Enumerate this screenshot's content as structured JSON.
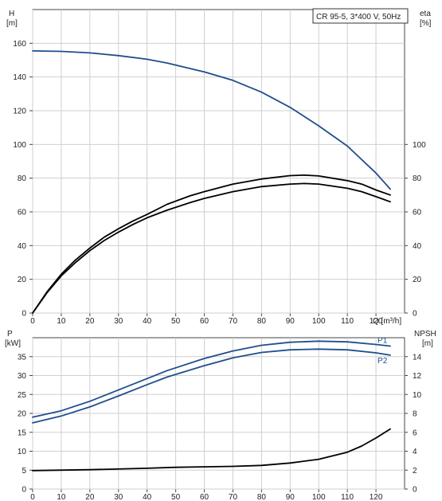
{
  "chart_data": [
    {
      "type": "line",
      "title": "CR 95-5, 3*400 V, 50Hz",
      "xlabel": "Q [m³/h]",
      "x_ticks": [
        0,
        10,
        20,
        30,
        40,
        50,
        60,
        70,
        80,
        90,
        100,
        110,
        120
      ],
      "xlim": [
        0,
        130
      ],
      "grid": true,
      "left_axis": {
        "label_line1": "H",
        "label_line2": "[m]",
        "ylim": [
          0,
          180
        ],
        "ticks": [
          0,
          20,
          40,
          60,
          80,
          100,
          120,
          140,
          160
        ]
      },
      "right_axis": {
        "label_line1": "eta",
        "label_line2": "[%]",
        "ylim": [
          0,
          180
        ],
        "ticks": [
          0,
          20,
          40,
          60,
          80,
          100
        ]
      },
      "series": [
        {
          "axis": "H",
          "color": "#1f4e8c",
          "values": [
            [
              0,
              155.5
            ],
            [
              10,
              155.2
            ],
            [
              20,
              154.3
            ],
            [
              30,
              152.7
            ],
            [
              40,
              150.5
            ],
            [
              47,
              148.3
            ],
            [
              60,
              143
            ],
            [
              70,
              138
            ],
            [
              80,
              131
            ],
            [
              90,
              122
            ],
            [
              100,
              111
            ],
            [
              110,
              99
            ],
            [
              120,
              83
            ],
            [
              125,
              73.5
            ]
          ]
        },
        {
          "axis": "eta",
          "color": "#000000",
          "values": [
            [
              0,
              0
            ],
            [
              5,
              12
            ],
            [
              10,
              22
            ],
            [
              15,
              30
            ],
            [
              20,
              37
            ],
            [
              25,
              43
            ],
            [
              30,
              48
            ],
            [
              35,
              52.5
            ],
            [
              40,
              56.5
            ],
            [
              47,
              61
            ],
            [
              55,
              65.5
            ],
            [
              60,
              68
            ],
            [
              70,
              72
            ],
            [
              80,
              75
            ],
            [
              90,
              76.5
            ],
            [
              95,
              76.8
            ],
            [
              100,
              76.5
            ],
            [
              110,
              74
            ],
            [
              115,
              72
            ],
            [
              120,
              69
            ],
            [
              125,
              66
            ]
          ]
        },
        {
          "axis": "eta",
          "color": "#000000",
          "values": [
            [
              0,
              0
            ],
            [
              5,
              12.5
            ],
            [
              10,
              23
            ],
            [
              15,
              31.5
            ],
            [
              20,
              38.5
            ],
            [
              25,
              45
            ],
            [
              30,
              50
            ],
            [
              35,
              54.5
            ],
            [
              40,
              58.5
            ],
            [
              47,
              64.5
            ],
            [
              55,
              69.5
            ],
            [
              60,
              72
            ],
            [
              70,
              76.5
            ],
            [
              80,
              79.5
            ],
            [
              90,
              81.5
            ],
            [
              95,
              81.8
            ],
            [
              100,
              81.3
            ],
            [
              110,
              78.5
            ],
            [
              115,
              76.5
            ],
            [
              120,
              73
            ],
            [
              125,
              70
            ]
          ]
        }
      ]
    },
    {
      "type": "line",
      "x_ticks": [
        0,
        10,
        20,
        30,
        40,
        50,
        60,
        70,
        80,
        90,
        100,
        110,
        120
      ],
      "xlim": [
        0,
        130
      ],
      "grid": true,
      "left_axis": {
        "label_line1": "P",
        "label_line2": "[kW]",
        "ylim": [
          0,
          40
        ],
        "ticks": [
          0,
          5,
          10,
          15,
          20,
          25,
          30,
          35
        ]
      },
      "right_axis": {
        "label_line1": "NPSH",
        "label_line2": "[m]",
        "ylim": [
          0,
          16
        ],
        "ticks": [
          0,
          2,
          4,
          6,
          8,
          10,
          12,
          14
        ]
      },
      "series": [
        {
          "name": "P1",
          "axis": "P",
          "color": "#1f4e8c",
          "values": [
            [
              0,
              19
            ],
            [
              10,
              20.7
            ],
            [
              20,
              23.2
            ],
            [
              30,
              26.2
            ],
            [
              40,
              29.2
            ],
            [
              47,
              31.3
            ],
            [
              60,
              34.5
            ],
            [
              70,
              36.5
            ],
            [
              80,
              38
            ],
            [
              90,
              38.8
            ],
            [
              100,
              39.1
            ],
            [
              110,
              38.9
            ],
            [
              120,
              38.2
            ],
            [
              125,
              37.8
            ]
          ]
        },
        {
          "name": "P2",
          "axis": "P",
          "color": "#1f4e8c",
          "values": [
            [
              0,
              17.5
            ],
            [
              10,
              19.3
            ],
            [
              20,
              21.7
            ],
            [
              30,
              24.6
            ],
            [
              40,
              27.6
            ],
            [
              47,
              29.6
            ],
            [
              60,
              32.6
            ],
            [
              70,
              34.7
            ],
            [
              80,
              36.1
            ],
            [
              90,
              36.8
            ],
            [
              100,
              37
            ],
            [
              110,
              36.8
            ],
            [
              120,
              36
            ],
            [
              125,
              35.4
            ]
          ]
        },
        {
          "axis": "NPSH",
          "color": "#000000",
          "values": [
            [
              0,
              1.95
            ],
            [
              20,
              2.05
            ],
            [
              40,
              2.2
            ],
            [
              50,
              2.3
            ],
            [
              60,
              2.35
            ],
            [
              70,
              2.4
            ],
            [
              80,
              2.5
            ],
            [
              90,
              2.75
            ],
            [
              100,
              3.15
            ],
            [
              110,
              3.9
            ],
            [
              115,
              4.55
            ],
            [
              120,
              5.4
            ],
            [
              125,
              6.35
            ]
          ]
        }
      ]
    }
  ]
}
